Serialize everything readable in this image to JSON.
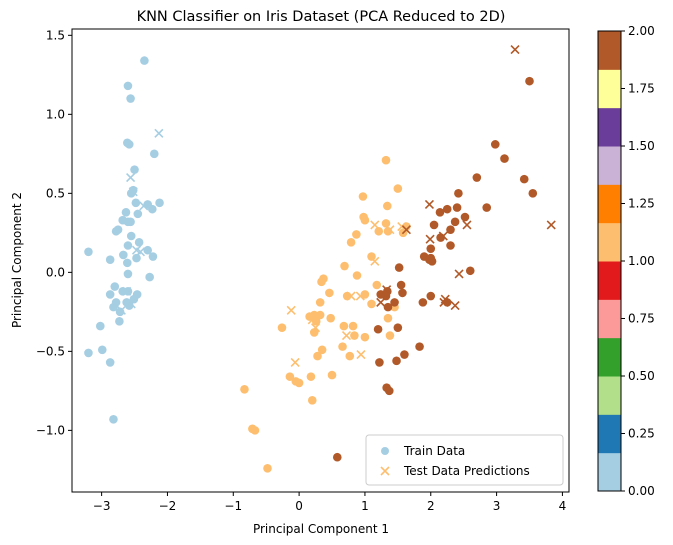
{
  "chart_data": {
    "type": "scatter",
    "title": "KNN Classifier on Iris Dataset (PCA Reduced to 2D)",
    "xlabel": "Principal Component 1",
    "ylabel": "Principal Component 2",
    "xlim": [
      -3.45,
      4.1
    ],
    "ylim": [
      -1.39,
      1.54
    ],
    "xticks": [
      -3,
      -2,
      -1,
      0,
      1,
      2,
      3,
      4
    ],
    "yticks": [
      -1.0,
      -0.5,
      0.0,
      0.5,
      1.0,
      1.5
    ],
    "xtick_labels": [
      "−3",
      "−2",
      "−1",
      "0",
      "1",
      "2",
      "3",
      "4"
    ],
    "ytick_labels": [
      "−1.0",
      "−0.5",
      "0.0",
      "0.5",
      "1.0",
      "1.5"
    ],
    "grid": false,
    "legend": {
      "position": "lower-right",
      "entries": [
        "Train Data",
        "Test Data Predictions"
      ]
    },
    "colorbar": {
      "range": [
        0,
        2
      ],
      "ticks": [
        0,
        0.25,
        0.5,
        0.75,
        1.0,
        1.25,
        1.5,
        1.75,
        2.0
      ],
      "tick_labels": [
        "0.00",
        "0.25",
        "0.50",
        "0.75",
        "1.00",
        "1.25",
        "1.50",
        "1.75",
        "2.00"
      ],
      "colors": [
        "#a6cee3",
        "#1f78b4",
        "#b2df8a",
        "#33a02c",
        "#fb9a99",
        "#e31a1c",
        "#fdbf6f",
        "#ff7f00",
        "#cab2d6",
        "#6a3d9a",
        "#ffff99",
        "#b15928"
      ]
    },
    "class_colors": [
      "#a6cee3",
      "#fdbf6f",
      "#b15928"
    ],
    "series": [
      {
        "name": "Train Data",
        "marker": "circle",
        "points": [
          [
            -2.35,
            1.34
          ],
          [
            -2.6,
            1.18
          ],
          [
            -2.56,
            1.1
          ],
          [
            -2.61,
            0.82
          ],
          [
            -2.58,
            0.81
          ],
          [
            -2.2,
            0.75
          ],
          [
            -2.5,
            0.65
          ],
          [
            -2.52,
            0.52
          ],
          [
            -2.55,
            0.5
          ],
          [
            -2.48,
            0.44
          ],
          [
            -2.63,
            0.38
          ],
          [
            -2.56,
            0.32
          ],
          [
            -2.12,
            0.44
          ],
          [
            -2.3,
            0.43
          ],
          [
            -2.23,
            0.4
          ],
          [
            -2.45,
            0.37
          ],
          [
            -2.68,
            0.33
          ],
          [
            -2.6,
            0.32
          ],
          [
            -2.75,
            0.27
          ],
          [
            -2.78,
            0.26
          ],
          [
            -2.55,
            0.23
          ],
          [
            -2.43,
            0.19
          ],
          [
            -2.3,
            0.14
          ],
          [
            -2.6,
            0.17
          ],
          [
            -2.22,
            0.1
          ],
          [
            -2.47,
            0.09
          ],
          [
            -2.67,
            0.11
          ],
          [
            -2.87,
            0.08
          ],
          [
            -3.2,
            0.13
          ],
          [
            -2.61,
            0.06
          ],
          [
            -2.27,
            -0.03
          ],
          [
            -2.6,
            -0.01
          ],
          [
            -2.8,
            -0.09
          ],
          [
            -2.68,
            -0.12
          ],
          [
            -2.87,
            -0.14
          ],
          [
            -2.46,
            -0.14
          ],
          [
            -2.6,
            -0.12
          ],
          [
            -2.51,
            -0.17
          ],
          [
            -2.78,
            -0.19
          ],
          [
            -2.62,
            -0.19
          ],
          [
            -2.82,
            -0.22
          ],
          [
            -2.72,
            -0.25
          ],
          [
            -2.58,
            -0.21
          ],
          [
            -2.73,
            -0.31
          ],
          [
            -3.02,
            -0.34
          ],
          [
            -2.99,
            -0.49
          ],
          [
            -3.2,
            -0.51
          ],
          [
            -2.87,
            -0.57
          ],
          [
            -2.82,
            -0.93
          ],
          [
            1.32,
            0.71
          ],
          [
            1.5,
            0.53
          ],
          [
            1.34,
            0.42
          ],
          [
            1.63,
            0.29
          ],
          [
            1.58,
            0.25
          ],
          [
            1.32,
            0.31
          ],
          [
            0.97,
            0.48
          ],
          [
            0.98,
            0.35
          ],
          [
            1.0,
            0.33
          ],
          [
            0.87,
            0.24
          ],
          [
            0.79,
            0.19
          ],
          [
            1.21,
            0.26
          ],
          [
            1.35,
            0.26
          ],
          [
            1.1,
            0.1
          ],
          [
            0.69,
            0.04
          ],
          [
            0.88,
            -0.02
          ],
          [
            1.18,
            -0.08
          ],
          [
            0.37,
            -0.04
          ],
          [
            0.34,
            -0.06
          ],
          [
            0.46,
            -0.13
          ],
          [
            0.73,
            -0.15
          ],
          [
            1.0,
            -0.14
          ],
          [
            1.1,
            -0.2
          ],
          [
            0.32,
            -0.19
          ],
          [
            0.23,
            -0.27
          ],
          [
            0.32,
            -0.27
          ],
          [
            0.48,
            -0.29
          ],
          [
            0.26,
            -0.31
          ],
          [
            0.16,
            -0.28
          ],
          [
            -0.26,
            -0.35
          ],
          [
            0.23,
            -0.38
          ],
          [
            0.68,
            -0.34
          ],
          [
            0.82,
            -0.34
          ],
          [
            1.0,
            -0.41
          ],
          [
            1.38,
            -0.4
          ],
          [
            1.35,
            -0.29
          ],
          [
            1.45,
            -0.22
          ],
          [
            0.84,
            -0.4
          ],
          [
            0.35,
            -0.49
          ],
          [
            0.66,
            -0.47
          ],
          [
            0.28,
            -0.53
          ],
          [
            0.77,
            -0.53
          ],
          [
            0.18,
            -0.66
          ],
          [
            0.5,
            -0.65
          ],
          [
            -0.14,
            -0.66
          ],
          [
            -0.05,
            -0.69
          ],
          [
            0.0,
            -0.7
          ],
          [
            0.2,
            -0.81
          ],
          [
            -0.83,
            -0.74
          ],
          [
            -0.71,
            -0.99
          ],
          [
            -0.67,
            -1.0
          ],
          [
            -0.48,
            -1.24
          ],
          [
            3.5,
            1.21
          ],
          [
            2.98,
            0.81
          ],
          [
            3.12,
            0.72
          ],
          [
            2.7,
            0.6
          ],
          [
            2.42,
            0.5
          ],
          [
            3.42,
            0.59
          ],
          [
            3.55,
            0.5
          ],
          [
            2.85,
            0.41
          ],
          [
            2.4,
            0.41
          ],
          [
            2.52,
            0.35
          ],
          [
            2.25,
            0.4
          ],
          [
            2.14,
            0.38
          ],
          [
            2.37,
            0.32
          ],
          [
            2.3,
            0.27
          ],
          [
            2.05,
            0.3
          ],
          [
            2.15,
            0.22
          ],
          [
            2.3,
            0.17
          ],
          [
            2.0,
            0.15
          ],
          [
            2.0,
            0.09
          ],
          [
            1.9,
            0.1
          ],
          [
            1.98,
            0.08
          ],
          [
            2.02,
            0.07
          ],
          [
            2.6,
            0.01
          ],
          [
            1.52,
            0.03
          ],
          [
            1.55,
            -0.08
          ],
          [
            1.57,
            -0.13
          ],
          [
            1.34,
            -0.12
          ],
          [
            1.32,
            -0.15
          ],
          [
            1.24,
            -0.14
          ],
          [
            1.45,
            -0.19
          ],
          [
            1.88,
            -0.19
          ],
          [
            2.0,
            -0.15
          ],
          [
            2.25,
            -0.19
          ],
          [
            1.35,
            -0.22
          ],
          [
            1.5,
            -0.35
          ],
          [
            1.2,
            -0.36
          ],
          [
            1.22,
            -0.57
          ],
          [
            1.6,
            -0.52
          ],
          [
            1.83,
            -0.47
          ],
          [
            1.48,
            -0.56
          ],
          [
            1.33,
            -0.73
          ],
          [
            1.37,
            -0.75
          ],
          [
            0.58,
            -1.17
          ]
        ]
      },
      {
        "name": "Test Data Predictions",
        "marker": "x",
        "points": [
          [
            -2.13,
            0.88
          ],
          [
            -2.56,
            0.6
          ],
          [
            -2.52,
            0.51
          ],
          [
            -2.36,
            0.42
          ],
          [
            -2.41,
            0.13
          ],
          [
            -2.47,
            0.14
          ],
          [
            -2.62,
            -0.12
          ],
          [
            -2.55,
            -0.2
          ],
          [
            -2.7,
            -0.24
          ],
          [
            1.15,
            0.3
          ],
          [
            1.38,
            0.27
          ],
          [
            1.56,
            0.29
          ],
          [
            1.15,
            0.07
          ],
          [
            0.79,
            -0.15
          ],
          [
            0.93,
            -0.15
          ],
          [
            0.25,
            -0.35
          ],
          [
            0.2,
            -0.3
          ],
          [
            -0.12,
            -0.24
          ],
          [
            0.72,
            -0.4
          ],
          [
            0.94,
            -0.52
          ],
          [
            -0.06,
            -0.57
          ],
          [
            3.28,
            1.41
          ],
          [
            3.83,
            0.3
          ],
          [
            2.55,
            0.3
          ],
          [
            1.98,
            0.43
          ],
          [
            1.63,
            0.27
          ],
          [
            1.99,
            0.21
          ],
          [
            2.19,
            0.23
          ],
          [
            1.33,
            -0.11
          ],
          [
            1.24,
            -0.19
          ],
          [
            2.2,
            -0.19
          ],
          [
            2.22,
            -0.17
          ],
          [
            2.37,
            -0.21
          ],
          [
            2.43,
            -0.01
          ]
        ]
      }
    ],
    "classes_train": "0,0,0,0,0,0,0,0,0,0,0,0,0,0,0,0,0,0,0,0,0,0,0,0,0,0,0,0,0,0,0,0,0,0,0,0,0,0,0,0,0,0,0,0,0,0,0,0,0,1,1,1,1,1,1,1,1,1,1,1,1,1,1,1,1,1,1,1,1,1,1,1,1,1,1,1,1,1,1,1,1,1,1,1,1,1,1,1,1,1,1,1,1,1,1,1,1,1,1,1,1,2,2,2,2,2,2,2,2,2,2,2,2,2,2,2,2,2,2,2,2,2,2,2,2,2,2,2,2,2,2,2,2,2,2,2,2,2,2,2,2,2,2,2,2",
    "classes_test": "0,0,0,0,0,0,0,0,0,1,1,1,1,1,1,1,1,1,1,1,1,2,2,2,2,2,2,2,2,2,2,2,2,2"
  }
}
